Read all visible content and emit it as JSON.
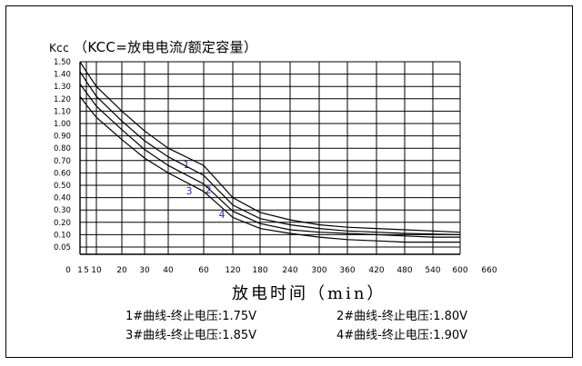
{
  "chart_data": {
    "type": "line",
    "ylabel_prefix": "Kcc",
    "ylabel": "（KCC=放电电流/额定容量）",
    "xlabel": "放电时间（min）",
    "x_ticks": [
      0,
      1,
      5,
      10,
      20,
      30,
      40,
      60,
      120,
      180,
      240,
      300,
      360,
      420,
      480,
      540,
      600,
      660
    ],
    "x_tick_labels": [
      "0",
      "1",
      "5",
      "10",
      "20",
      "30",
      "40",
      "60",
      "120",
      "180",
      "240",
      "300",
      "360",
      "420",
      "480",
      "540",
      "600",
      "660"
    ],
    "y_ticks": [
      0.05,
      0.1,
      0.2,
      0.3,
      0.4,
      0.5,
      0.6,
      0.7,
      0.8,
      0.9,
      1.0,
      1.1,
      1.2,
      1.3,
      1.4,
      1.5
    ],
    "y_tick_labels": [
      "0.05",
      "0.10",
      "0.20",
      "0.30",
      "0.40",
      "0.50",
      "0.60",
      "0.70",
      "0.80",
      "0.90",
      "1.00",
      "1.10",
      "1.20",
      "1.30",
      "1.40",
      "1.50"
    ],
    "xlim": [
      0,
      600
    ],
    "ylim": [
      0,
      1.5
    ],
    "grid": true,
    "series": [
      {
        "label": "1",
        "x": [
          1,
          5,
          10,
          20,
          30,
          40,
          60,
          120,
          180,
          240,
          300,
          360,
          420,
          480,
          540,
          600
        ],
        "y": [
          1.5,
          1.42,
          1.3,
          1.1,
          0.94,
          0.8,
          0.66,
          0.4,
          0.28,
          0.22,
          0.18,
          0.16,
          0.15,
          0.14,
          0.13,
          0.12
        ]
      },
      {
        "label": "2",
        "x": [
          1,
          5,
          10,
          20,
          30,
          40,
          60,
          120,
          180,
          240,
          300,
          360,
          420,
          480,
          540,
          600
        ],
        "y": [
          1.42,
          1.34,
          1.22,
          1.02,
          0.86,
          0.73,
          0.58,
          0.34,
          0.23,
          0.18,
          0.15,
          0.13,
          0.12,
          0.11,
          0.105,
          0.1
        ]
      },
      {
        "label": "3",
        "x": [
          1,
          5,
          10,
          20,
          30,
          40,
          60,
          120,
          180,
          240,
          300,
          360,
          420,
          480,
          540,
          600
        ],
        "y": [
          1.32,
          1.25,
          1.14,
          0.95,
          0.79,
          0.66,
          0.51,
          0.29,
          0.19,
          0.14,
          0.12,
          0.11,
          0.1,
          0.095,
          0.09,
          0.09
        ]
      },
      {
        "label": "4",
        "x": [
          1,
          5,
          10,
          20,
          30,
          40,
          60,
          120,
          180,
          240,
          300,
          360,
          420,
          480,
          540,
          600
        ],
        "y": [
          1.22,
          1.15,
          1.05,
          0.87,
          0.72,
          0.6,
          0.45,
          0.24,
          0.15,
          0.11,
          0.09,
          0.08,
          0.075,
          0.07,
          0.07,
          0.07
        ]
      }
    ],
    "series_label_color": "#2b2bb3"
  },
  "notes": [
    "1#曲线-终止电压:1.75V",
    "2#曲线-终止电压:1.80V",
    "3#曲线-终止电压:1.85V",
    "4#曲线-终止电压:1.90V"
  ]
}
